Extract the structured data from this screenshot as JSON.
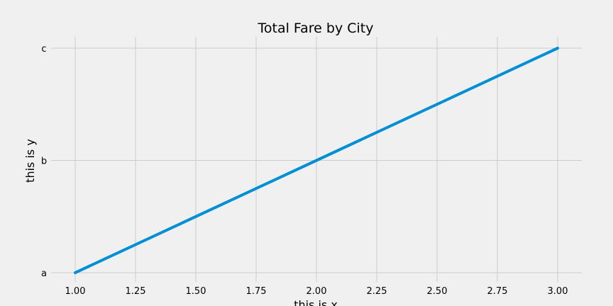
{
  "chart_data": {
    "type": "line",
    "title": "Total Fare by City",
    "xlabel": "this is x",
    "ylabel": "this is y",
    "x": [
      1,
      2,
      3
    ],
    "y_categories": [
      "a",
      "b",
      "c"
    ],
    "series": [
      {
        "values": [
          "a",
          "b",
          "c"
        ],
        "color": "#008fd5"
      }
    ],
    "xlim": [
      0.9,
      3.1
    ],
    "x_ticks": [
      "1.00",
      "1.25",
      "1.50",
      "1.75",
      "2.00",
      "2.25",
      "2.50",
      "2.75",
      "3.00"
    ],
    "y_ticks": [
      "a",
      "b",
      "c"
    ],
    "grid": true,
    "style": "fivethirtyeight",
    "background_color": "#f0f0f0",
    "grid_color": "#cbcbcb"
  }
}
